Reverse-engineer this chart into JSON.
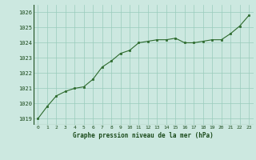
{
  "x": [
    0,
    1,
    2,
    3,
    4,
    5,
    6,
    7,
    8,
    9,
    10,
    11,
    12,
    13,
    14,
    15,
    16,
    17,
    18,
    19,
    20,
    21,
    22,
    23
  ],
  "y": [
    1019.0,
    1019.8,
    1020.5,
    1020.8,
    1021.0,
    1021.1,
    1021.6,
    1022.4,
    1022.8,
    1023.3,
    1023.5,
    1024.0,
    1024.1,
    1024.2,
    1024.2,
    1024.3,
    1024.0,
    1024.0,
    1024.1,
    1024.2,
    1024.2,
    1024.6,
    1025.1,
    1025.8
  ],
  "line_color": "#2d6a2d",
  "marker_color": "#2d6a2d",
  "bg_color": "#cce8e0",
  "grid_color": "#99ccbb",
  "xlabel": "Graphe pression niveau de la mer (hPa)",
  "xlabel_color": "#1a4a1a",
  "tick_color": "#1a4a1a",
  "ylim_min": 1018.6,
  "ylim_max": 1026.5,
  "yticks": [
    1019,
    1020,
    1021,
    1022,
    1023,
    1024,
    1025,
    1026
  ],
  "xticks": [
    0,
    1,
    2,
    3,
    4,
    5,
    6,
    7,
    8,
    9,
    10,
    11,
    12,
    13,
    14,
    15,
    16,
    17,
    18,
    19,
    20,
    21,
    22,
    23
  ]
}
